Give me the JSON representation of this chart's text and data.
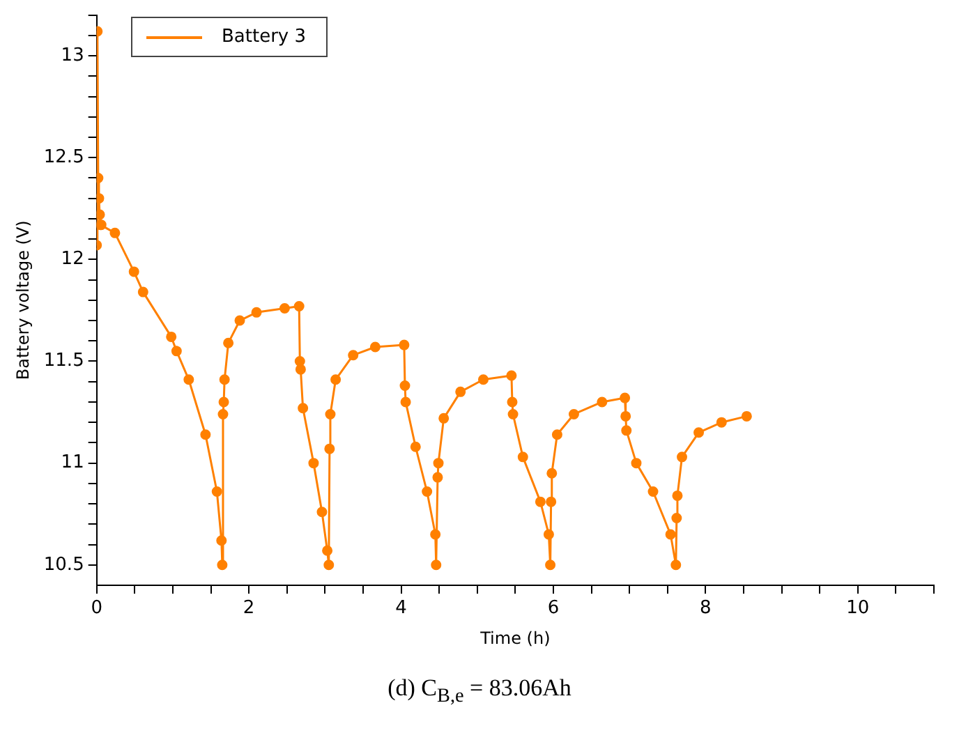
{
  "chart_data": {
    "type": "line",
    "xlabel": "Time (h)",
    "ylabel": "Battery voltage (V)",
    "legend": "top left",
    "marker": "circle",
    "line_style": "solid",
    "grid": false,
    "annotations": [
      "(d) C$_{B,e}$ = 83.06Ah"
    ],
    "xlim": [
      0,
      11
    ],
    "ylim": [
      10.4,
      13.2
    ],
    "xticks": [
      0,
      {
        "value": 0.5,
        "label": null
      },
      2,
      {
        "value": 1,
        "label": null
      },
      {
        "value": 1.5,
        "label": null
      },
      {
        "value": 2.5,
        "label": null
      },
      {
        "value": 3,
        "label": null
      },
      {
        "value": 3.5,
        "label": null
      },
      4,
      {
        "value": 4.5,
        "label": null
      },
      {
        "value": 5,
        "label": null
      },
      {
        "value": 5.5,
        "label": null
      },
      6,
      {
        "value": 6.5,
        "label": null
      },
      {
        "value": 7,
        "label": null
      },
      {
        "value": 7.5,
        "label": null
      },
      8,
      {
        "value": 8.5,
        "label": null
      },
      {
        "value": 9,
        "label": null
      },
      {
        "value": 9.5,
        "label": null
      },
      10,
      {
        "value": 10.5,
        "label": null
      },
      {
        "value": 11,
        "label": null
      }
    ],
    "yticks": [
      10.5,
      {
        "value": 10.6,
        "label": null
      },
      {
        "value": 10.7,
        "label": null
      },
      {
        "value": 10.8,
        "label": null
      },
      {
        "value": 10.9,
        "label": null
      },
      11,
      {
        "value": 11.1,
        "label": null
      },
      {
        "value": 11.2,
        "label": null
      },
      {
        "value": 11.3,
        "label": null
      },
      {
        "value": 11.4,
        "label": null
      },
      11.5,
      {
        "value": 11.6,
        "label": null
      },
      {
        "value": 11.7,
        "label": null
      },
      {
        "value": 11.8,
        "label": null
      },
      {
        "value": 11.9,
        "label": null
      },
      12,
      {
        "value": 12.1,
        "label": null
      },
      {
        "value": 12.2,
        "label": null
      },
      {
        "value": 12.3,
        "label": null
      },
      {
        "value": 12.4,
        "label": null
      },
      12.5,
      {
        "value": 12.6,
        "label": null
      },
      {
        "value": 12.7,
        "label": null
      },
      {
        "value": 12.8,
        "label": null
      },
      {
        "value": 12.9,
        "label": null
      },
      13,
      {
        "value": 13.1,
        "label": null
      },
      {
        "value": 13.2,
        "label": null
      }
    ],
    "series": [
      {
        "name": "Battery 3",
        "color": "#ff8000",
        "x": [
          0,
          0.01,
          0.02,
          0.03,
          0.04,
          0.05,
          0.06,
          0.24,
          0.49,
          0.61,
          0.98,
          1.05,
          1.21,
          1.43,
          1.58,
          1.64,
          1.65,
          1.66,
          1.67,
          1.68,
          1.73,
          1.88,
          2.1,
          2.47,
          2.66,
          2.67,
          2.68,
          2.71,
          2.85,
          2.96,
          3.03,
          3.05,
          3.06,
          3.07,
          3.14,
          3.37,
          3.66,
          4.04,
          4.05,
          4.06,
          4.19,
          4.34,
          4.45,
          4.46,
          4.48,
          4.49,
          4.56,
          4.78,
          5.08,
          5.45,
          5.46,
          5.47,
          5.6,
          5.83,
          5.94,
          5.96,
          5.97,
          5.98,
          6.05,
          6.27,
          6.64,
          6.94,
          6.95,
          6.96,
          7.09,
          7.31,
          7.54,
          7.61,
          7.62,
          7.63,
          7.69,
          7.91,
          8.21,
          8.54
        ],
        "values": [
          12.07,
          13.12,
          12.4,
          12.3,
          12.22,
          12.17,
          12.17,
          12.13,
          11.94,
          11.84,
          11.62,
          11.55,
          11.41,
          11.14,
          10.86,
          10.62,
          10.5,
          11.24,
          11.3,
          11.41,
          11.59,
          11.7,
          11.74,
          11.76,
          11.77,
          11.5,
          11.46,
          11.27,
          11.0,
          10.76,
          10.57,
          10.5,
          11.07,
          11.24,
          11.41,
          11.53,
          11.57,
          11.58,
          11.38,
          11.3,
          11.08,
          10.86,
          10.65,
          10.5,
          10.93,
          11.0,
          11.22,
          11.35,
          11.41,
          11.43,
          11.3,
          11.24,
          11.03,
          10.81,
          10.65,
          10.5,
          10.81,
          10.95,
          11.14,
          11.24,
          11.3,
          11.32,
          11.23,
          11.16,
          11.0,
          10.86,
          10.65,
          10.5,
          10.73,
          10.84,
          11.03,
          11.15,
          11.2,
          11.23
        ]
      }
    ]
  }
}
